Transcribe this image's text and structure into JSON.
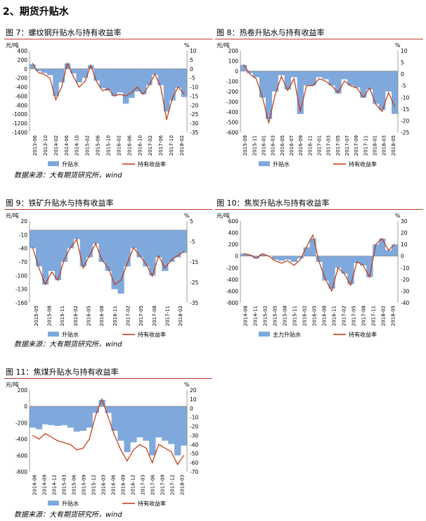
{
  "page": {
    "section_title": "2、期货升贴水",
    "source_note": "数据来源：大有期货研究所，wind"
  },
  "colors": {
    "basis": "#7fa9dc",
    "return": "#c0360c",
    "rule": "#c0392b"
  },
  "chart_data": [
    {
      "id": "fig7",
      "type": "bar+line",
      "title": "图 7：螺纹钢升贴水与持有收益率",
      "left_unit": "元/吨",
      "right_unit": "%",
      "left_ticks": [
        "400",
        "200",
        "0",
        "-200",
        "-400",
        "-600",
        "-800",
        "-1000",
        "-1200",
        "-1400"
      ],
      "right_ticks": [
        "10",
        "5",
        "0",
        "-5",
        "-10",
        "-15",
        "-20",
        "-25",
        "-30",
        "-35"
      ],
      "ylim": [
        -1400,
        400
      ],
      "y2lim": [
        -35,
        10
      ],
      "x_labels": [
        "2013-06",
        "2013-10",
        "2014-02",
        "2014-06",
        "2014-10",
        "2015-02",
        "2015-06",
        "2015-10",
        "2016-02",
        "2016-06",
        "2016-10",
        "2017-02",
        "2017-06",
        "2017-10",
        "2018-02"
      ],
      "series": [
        {
          "name": "升贴水",
          "kind": "bar",
          "values": [
            100,
            -50,
            -90,
            -140,
            -600,
            -300,
            120,
            -100,
            -300,
            -200,
            80,
            -260,
            -420,
            -480,
            -600,
            -520,
            -770,
            -640,
            -500,
            -560,
            -360,
            -130,
            -360,
            -940,
            -700,
            -420,
            -620
          ]
        },
        {
          "name": "持有收益率",
          "kind": "line",
          "values": [
            3,
            -2,
            -3,
            -5,
            -17,
            -10,
            3,
            -4,
            -10,
            -7,
            2,
            -7,
            -12,
            -11,
            -15,
            -14,
            -15,
            -13,
            -10,
            -14,
            -9,
            -3,
            -10,
            -28,
            -16,
            -10,
            -14
          ]
        }
      ]
    },
    {
      "id": "fig8",
      "type": "bar+line",
      "title": "图 8：热卷升贴水与持有收益率",
      "left_unit": "元/吨",
      "right_unit": "%",
      "left_ticks": [
        "200",
        "100",
        "0",
        "-100",
        "-200",
        "-300",
        "-400",
        "-500",
        "-600"
      ],
      "right_ticks": [
        "10",
        "5",
        "0",
        "-5",
        "-10",
        "-15",
        "-20",
        "-25"
      ],
      "ylim": [
        -600,
        200
      ],
      "y2lim": [
        -25,
        10
      ],
      "x_labels": [
        "2015-09",
        "2015-11",
        "2016-01",
        "2016-03",
        "2016-05",
        "2016-07",
        "2016-09",
        "2016-11",
        "2017-01",
        "2017-03",
        "2017-05",
        "2017-07",
        "2017-09",
        "2017-11",
        "2018-01",
        "2018-03",
        "2018-05"
      ],
      "series": [
        {
          "name": "升贴水",
          "kind": "bar",
          "values": [
            60,
            -20,
            -60,
            -260,
            -470,
            -200,
            -40,
            -180,
            -60,
            -420,
            -140,
            -140,
            -60,
            -80,
            -140,
            -220,
            -80,
            -140,
            -160,
            -260,
            -180,
            -320,
            -380,
            -200,
            -420
          ]
        },
        {
          "name": "持有收益率",
          "kind": "line",
          "values": [
            4,
            0,
            -2,
            -10,
            -21,
            -9,
            -1,
            -7,
            -2,
            -16,
            -5,
            -5,
            -2,
            -3,
            -5,
            -8,
            -3,
            -5,
            -6,
            -10,
            -6,
            -13,
            -16,
            -8,
            -14
          ]
        }
      ]
    },
    {
      "id": "fig9",
      "type": "bar+line",
      "title": "图 9：铁矿升贴水与持有收益率",
      "left_unit": "元/吨",
      "right_unit": "%",
      "left_ticks": [
        "20",
        "-10",
        "-40",
        "-70",
        "-100",
        "-130",
        "-160"
      ],
      "right_ticks": [
        "5",
        "-5",
        "-15",
        "-25",
        "-35"
      ],
      "ylim": [
        -160,
        20
      ],
      "y2lim": [
        -35,
        5
      ],
      "x_labels": [
        "2015-05",
        "2015-08",
        "2015-11",
        "2016-02",
        "2016-05",
        "2016-08",
        "2016-11",
        "2017-02",
        "2017-05",
        "2017-08",
        "2017-11",
        "2018-02"
      ],
      "series": [
        {
          "name": "升贴水",
          "kind": "bar",
          "values": [
            -40,
            -80,
            -120,
            -90,
            -110,
            -70,
            -40,
            -20,
            -80,
            -60,
            -30,
            -70,
            -90,
            -130,
            -140,
            -80,
            -40,
            -60,
            -80,
            -100,
            -60,
            -90,
            -70,
            -60,
            -50
          ]
        },
        {
          "name": "持有收益率",
          "kind": "line",
          "values": [
            -8,
            -18,
            -26,
            -20,
            -24,
            -14,
            -8,
            -4,
            -18,
            -12,
            -6,
            -14,
            -18,
            -26,
            -24,
            -16,
            -8,
            -12,
            -16,
            -22,
            -12,
            -18,
            -14,
            -12,
            -10
          ]
        }
      ]
    },
    {
      "id": "fig10",
      "type": "bar+line",
      "title": "图 10：焦炭升贴水与持有收益率",
      "left_unit": "元/吨",
      "right_unit": "%",
      "left_ticks": [
        "600",
        "400",
        "200",
        "0",
        "-200",
        "-400",
        "-600",
        "-800"
      ],
      "right_ticks": [
        "30",
        "20",
        "10",
        "0",
        "-10",
        "-20",
        "-30",
        "-40"
      ],
      "ylim": [
        -800,
        600
      ],
      "y2lim": [
        -40,
        30
      ],
      "x_labels": [
        "2014-08",
        "2014-11",
        "2015-02",
        "2015-05",
        "2015-08",
        "2015-11",
        "2016-02",
        "2016-05",
        "2016-08",
        "2016-11",
        "2017-02",
        "2017-05",
        "2017-08",
        "2017-11",
        "2018-02",
        "2018-05"
      ],
      "series": [
        {
          "name": "主力升贴水",
          "kind": "bar",
          "values": [
            40,
            20,
            -40,
            30,
            0,
            -60,
            -80,
            -60,
            -100,
            -40,
            150,
            300,
            -100,
            -420,
            -560,
            -200,
            -300,
            -480,
            -120,
            -160,
            -360,
            200,
            300,
            100,
            200
          ]
        },
        {
          "name": "持有收益率",
          "kind": "line",
          "values": [
            2,
            1,
            -2,
            2,
            0,
            -4,
            -6,
            -4,
            -8,
            -3,
            8,
            18,
            -5,
            -20,
            -30,
            -10,
            -15,
            -25,
            -5,
            -8,
            -18,
            10,
            15,
            5,
            10
          ]
        }
      ]
    },
    {
      "id": "fig11",
      "type": "bar+line",
      "title": "图 11：焦煤升贴水与持有收益率",
      "left_unit": "元/吨",
      "right_unit": "%",
      "left_ticks": [
        "200",
        "0",
        "-200",
        "-400",
        "-600",
        "-800"
      ],
      "right_ticks": [
        "20",
        "10",
        "0",
        "-10",
        "-20",
        "-30",
        "-40",
        "-50",
        "-60",
        "-70"
      ],
      "ylim": [
        -800,
        200
      ],
      "y2lim": [
        -70,
        20
      ],
      "x_labels": [
        "2014-06",
        "2014-09",
        "2014-12",
        "2015-03",
        "2015-06",
        "2015-09",
        "2015-12",
        "2016-03",
        "2016-06",
        "2016-09",
        "2016-12",
        "2017-03",
        "2017-06",
        "2017-09",
        "2017-12",
        "2018-03"
      ],
      "series": [
        {
          "name": "升贴水",
          "kind": "bar",
          "values": [
            -260,
            -280,
            -220,
            -230,
            -240,
            -230,
            -260,
            -310,
            -300,
            -260,
            -80,
            80,
            -80,
            -300,
            -420,
            -560,
            -440,
            -380,
            -420,
            -600,
            -380,
            -420,
            -460,
            -600,
            -480
          ]
        },
        {
          "name": "持有收益率",
          "kind": "line",
          "values": [
            -30,
            -34,
            -28,
            -32,
            -36,
            -38,
            -40,
            -46,
            -44,
            -34,
            -8,
            10,
            -10,
            -30,
            -46,
            -58,
            -46,
            -40,
            -44,
            -60,
            -40,
            -44,
            -48,
            -62,
            -52
          ]
        }
      ]
    }
  ]
}
